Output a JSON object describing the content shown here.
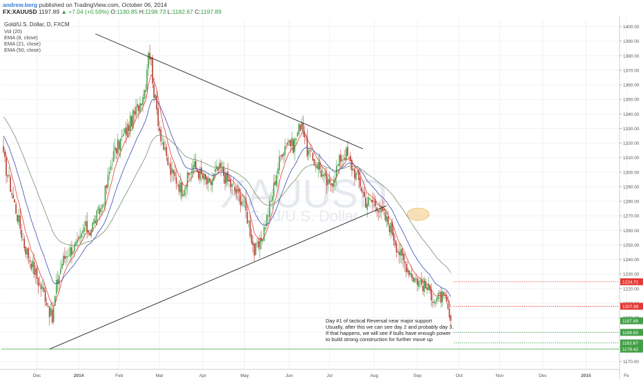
{
  "header": {
    "author": "andrew.berg",
    "published_text": "published on TradingView.com, October 06, 2014",
    "symbol": "FX:XAUUSD",
    "last": "1197.89",
    "change": "+7.04 (+0.59%)",
    "o_label": "O:",
    "o_value": "1190.85",
    "h_label": "H:",
    "h_value": "1198.73",
    "l_label": "L:",
    "l_value": "1182.67",
    "c_label": "C:",
    "c_value": "1197.89"
  },
  "legend": {
    "title": "Gold/U.S. Dollar, D, FXCM",
    "items": [
      "Vol (20)",
      "EMA (8, close)",
      "EMA (21, close)",
      "EMA (50, close)"
    ]
  },
  "watermark": {
    "symbol": "XAUUSD",
    "name": "Gold/U.S. Dollar"
  },
  "annotation": {
    "lines": [
      "Day #1 of tactical Reversal near major support",
      "Usually, after this we can see day 2 and probably day 3.",
      "If that happens, we will see if bulls have enough power",
      "to build strong construction for further move up"
    ]
  },
  "price_labels": [
    {
      "text": "1224.71",
      "value": 1224.71,
      "color": "#e53935"
    },
    {
      "text": "1207.88",
      "value": 1207.88,
      "color": "#e53935"
    },
    {
      "text": "1197.89",
      "value": 1197.89,
      "color": "#43a047"
    },
    {
      "text": "1189.93",
      "value": 1189.93,
      "color": "#43a047"
    },
    {
      "text": "1182.67",
      "value": 1182.67,
      "color": "#43a047"
    },
    {
      "text": "1178.42",
      "value": 1178.42,
      "color": "#43a047"
    }
  ],
  "colors": {
    "bull": "#43a047",
    "bear": "#b23a2e",
    "ema8": "#e53935",
    "ema21": "#3949ab",
    "ema50": "#7a8a6a",
    "trendline": "#222222",
    "grid": "#eef1f5",
    "highlight": "#f6c77a"
  },
  "chart_data": {
    "type": "candlestick",
    "title": "Gold/U.S. Dollar, D, FXCM",
    "ylim": [
      1165,
      1405
    ],
    "y_ticks": [
      1400,
      1390,
      1380,
      1370,
      1360,
      1350,
      1340,
      1330,
      1320,
      1310,
      1300,
      1290,
      1280,
      1270,
      1260,
      1250,
      1240,
      1230,
      1220,
      1210,
      1200,
      1190,
      1180,
      1170
    ],
    "y_tick_labels": [
      "1400.00",
      "1390.00",
      "1380.00",
      "1370.00",
      "1360.00",
      "1350.00",
      "1340.00",
      "1330.00",
      "1320.00",
      "1310.00",
      "1300.00",
      "1290.00",
      "1280.00",
      "1270.00",
      "1260.00",
      "1250.00",
      "1240.00",
      "1230.00",
      "1220.00",
      "1210.00",
      "1200.00",
      "1190.00",
      "1180.00",
      "1170.00"
    ],
    "x_labels": [
      "Dec",
      "2014",
      "Feb",
      "Mar",
      "Apr",
      "May",
      "Jun",
      "Jul",
      "Aug",
      "Sep",
      "Oct",
      "Nov",
      "Dec",
      "2015",
      "Fe"
    ],
    "bold_x_labels": [
      "2014",
      "2015"
    ],
    "approx_close_path": [
      [
        0,
        1310
      ],
      [
        5,
        1290
      ],
      [
        10,
        1270
      ],
      [
        15,
        1250
      ],
      [
        20,
        1238
      ],
      [
        25,
        1225
      ],
      [
        30,
        1215
      ],
      [
        33,
        1205
      ],
      [
        35,
        1198
      ],
      [
        38,
        1222
      ],
      [
        42,
        1238
      ],
      [
        46,
        1245
      ],
      [
        50,
        1248
      ],
      [
        54,
        1250
      ],
      [
        58,
        1262
      ],
      [
        62,
        1260
      ],
      [
        66,
        1268
      ],
      [
        70,
        1275
      ],
      [
        74,
        1290
      ],
      [
        78,
        1310
      ],
      [
        82,
        1318
      ],
      [
        86,
        1325
      ],
      [
        90,
        1332
      ],
      [
        94,
        1340
      ],
      [
        98,
        1348
      ],
      [
        102,
        1360
      ],
      [
        104,
        1385
      ],
      [
        106,
        1375
      ],
      [
        108,
        1355
      ],
      [
        112,
        1330
      ],
      [
        116,
        1312
      ],
      [
        120,
        1300
      ],
      [
        124,
        1295
      ],
      [
        128,
        1288
      ],
      [
        132,
        1295
      ],
      [
        136,
        1305
      ],
      [
        140,
        1300
      ],
      [
        144,
        1295
      ],
      [
        148,
        1290
      ],
      [
        152,
        1300
      ],
      [
        156,
        1302
      ],
      [
        160,
        1295
      ],
      [
        164,
        1290
      ],
      [
        168,
        1285
      ],
      [
        172,
        1280
      ],
      [
        176,
        1265
      ],
      [
        180,
        1245
      ],
      [
        184,
        1250
      ],
      [
        188,
        1265
      ],
      [
        192,
        1280
      ],
      [
        196,
        1300
      ],
      [
        200,
        1315
      ],
      [
        204,
        1322
      ],
      [
        208,
        1318
      ],
      [
        212,
        1330
      ],
      [
        214,
        1336
      ],
      [
        218,
        1315
      ],
      [
        222,
        1308
      ],
      [
        226,
        1305
      ],
      [
        230,
        1295
      ],
      [
        234,
        1290
      ],
      [
        238,
        1300
      ],
      [
        242,
        1310
      ],
      [
        246,
        1313
      ],
      [
        248,
        1308
      ],
      [
        252,
        1300
      ],
      [
        256,
        1292
      ],
      [
        260,
        1280
      ],
      [
        264,
        1280
      ],
      [
        268,
        1278
      ],
      [
        270,
        1275
      ],
      [
        274,
        1268
      ],
      [
        278,
        1262
      ],
      [
        282,
        1250
      ],
      [
        286,
        1240
      ],
      [
        290,
        1235
      ],
      [
        294,
        1228
      ],
      [
        298,
        1225
      ],
      [
        302,
        1222
      ],
      [
        306,
        1218
      ],
      [
        310,
        1212
      ],
      [
        314,
        1214
      ],
      [
        317,
        1212
      ],
      [
        320,
        1200
      ],
      [
        321,
        1197.89
      ]
    ],
    "ema_length_labels": [
      "EMA (8, close)",
      "EMA (21, close)",
      "EMA (50, close)"
    ],
    "trendlines": [
      {
        "name": "upper",
        "from": {
          "bar": 66,
          "price": 1395
        },
        "to": {
          "bar": 258,
          "price": 1316
        }
      },
      {
        "name": "lower",
        "from": {
          "bar": 33,
          "price": 1178.42
        },
        "to": {
          "bar": 275,
          "price": 1277
        }
      }
    ],
    "horizontal_levels": [
      1224.71,
      1207.88,
      1189.93,
      1182.67,
      1178.42
    ]
  }
}
